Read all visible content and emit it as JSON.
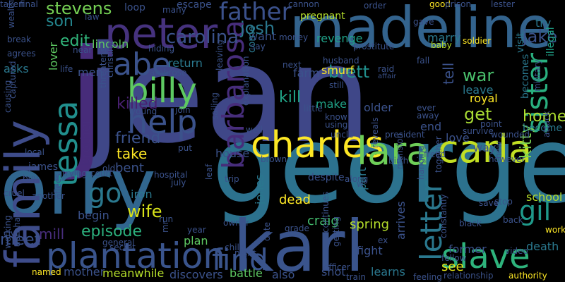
{
  "wordcloud": {
    "background": "#000000",
    "palette": [
      "#440154",
      "#482878",
      "#3e4a89",
      "#31688e",
      "#26828e",
      "#1f9e89",
      "#35b779",
      "#6ece58",
      "#b5de2b",
      "#fde725"
    ],
    "words": [
      {
        "text": "jean",
        "color": "#3f4788"
      },
      {
        "text": "j",
        "color": "#472c7a"
      },
      {
        "text": "george",
        "color": "#2c728e"
      },
      {
        "text": "orry",
        "color": "#31668e"
      },
      {
        "text": "karl",
        "color": "#3a548c"
      },
      {
        "text": "madeline",
        "color": "#33638d"
      },
      {
        "text": "family",
        "color": "#3e4c8a"
      },
      {
        "text": "peter",
        "color": "#46327e"
      },
      {
        "text": "charles",
        "color": "#fde725"
      },
      {
        "text": "lara",
        "color": "#6ece58"
      },
      {
        "text": "carla",
        "color": "#c2df23"
      },
      {
        "text": "plantation",
        "color": "#3a548c"
      },
      {
        "text": "slave",
        "color": "#2eb37c"
      },
      {
        "text": "billy",
        "color": "#5ec962"
      },
      {
        "text": "help",
        "color": "#3b528b"
      },
      {
        "text": "abe",
        "color": "#3b528b"
      },
      {
        "text": "tessa",
        "color": "#218f8d"
      },
      {
        "text": "barbarosa",
        "color": "#472d7b"
      },
      {
        "text": "find",
        "color": "#3a548c"
      },
      {
        "text": "letter",
        "color": "#2a788e"
      },
      {
        "text": "sister",
        "color": "#29af7f"
      },
      {
        "text": "father",
        "color": "#3b518b"
      },
      {
        "text": "go",
        "color": "#2a788e"
      },
      {
        "text": "gil",
        "color": "#1f998a"
      },
      {
        "text": "carolina",
        "color": "#3b528b"
      },
      {
        "text": "jake",
        "color": "#3b528b"
      },
      {
        "text": "kitty",
        "color": "#7ad151"
      },
      {
        "text": "josh",
        "color": "#2a788e"
      },
      {
        "text": "stevens",
        "color": "#75d054"
      },
      {
        "text": "brett",
        "color": "#21908d"
      },
      {
        "text": "son",
        "color": "#24868e"
      },
      {
        "text": "edit",
        "color": "#31b57b"
      },
      {
        "text": "lincoln",
        "color": "#5ec962"
      },
      {
        "text": "war",
        "color": "#4ac16d"
      },
      {
        "text": "kill",
        "color": "#20a386"
      },
      {
        "text": "episode",
        "color": "#2cb17e"
      },
      {
        "text": "wife",
        "color": "#d8e219"
      },
      {
        "text": "killed",
        "color": "#482071"
      },
      {
        "text": "friend",
        "color": "#3b528b"
      },
      {
        "text": "take",
        "color": "#fde725"
      },
      {
        "text": "bent",
        "color": "#3b528b"
      },
      {
        "text": "get",
        "color": "#a8db34"
      },
      {
        "text": "home",
        "color": "#addc30"
      },
      {
        "text": "tell",
        "color": "#3b528b"
      },
      {
        "text": "brother",
        "color": "#472d7b"
      },
      {
        "text": "meet",
        "color": "#3b528b"
      },
      {
        "text": "mill",
        "color": "#472d7b"
      },
      {
        "text": "iron",
        "color": "#2a788e"
      },
      {
        "text": "mother",
        "color": "#3b528b"
      },
      {
        "text": "meanwhile",
        "color": "#b5de2b"
      },
      {
        "text": "discovers",
        "color": "#3b528b"
      },
      {
        "text": "battle",
        "color": "#5ec962"
      },
      {
        "text": "also",
        "color": "#3b528b"
      },
      {
        "text": "shot",
        "color": "#3b528b"
      },
      {
        "text": "learns",
        "color": "#2a788e"
      },
      {
        "text": "see",
        "color": "#e5e419"
      },
      {
        "text": "former",
        "color": "#3b528b"
      },
      {
        "text": "death",
        "color": "#2a788e"
      },
      {
        "text": "school",
        "color": "#b5de2b"
      },
      {
        "text": "fight",
        "color": "#3b528b"
      },
      {
        "text": "spring",
        "color": "#b5de2b"
      },
      {
        "text": "craig",
        "color": "#44bf70"
      },
      {
        "text": "dead",
        "color": "#fde725"
      },
      {
        "text": "house",
        "color": "#3b528b"
      },
      {
        "text": "jones",
        "color": "#2a788e"
      },
      {
        "text": "part",
        "color": "#2a788e"
      },
      {
        "text": "plan",
        "color": "#5ec962"
      },
      {
        "text": "smurf",
        "color": "#fde725"
      },
      {
        "text": "farm",
        "color": "#3b528b"
      },
      {
        "text": "older",
        "color": "#3b528b"
      },
      {
        "text": "make",
        "color": "#1fa187"
      },
      {
        "text": "revenge",
        "color": "#1fa187"
      },
      {
        "text": "marry",
        "color": "#2a788e"
      },
      {
        "text": "visit",
        "color": "#2a788e"
      },
      {
        "text": "try",
        "color": "#2a788e"
      },
      {
        "text": "illegal",
        "color": "#1fa187"
      },
      {
        "text": "leave",
        "color": "#2a788e"
      },
      {
        "text": "royal",
        "color": "#fde725"
      },
      {
        "text": "end",
        "color": "#3b528b"
      },
      {
        "text": "love",
        "color": "#3b528b"
      },
      {
        "text": "way",
        "color": "#3b528b"
      },
      {
        "text": "becomes",
        "color": "#2a788e"
      },
      {
        "text": "become",
        "color": "#2a788e"
      },
      {
        "text": "want",
        "color": "#3b528b"
      },
      {
        "text": "come",
        "color": "#2a788e"
      },
      {
        "text": "return",
        "color": "#2a788e"
      },
      {
        "text": "men",
        "color": "#3b528b"
      },
      {
        "text": "lover",
        "color": "#5ec962"
      },
      {
        "text": "taken",
        "color": "#3b528b"
      },
      {
        "text": "asks",
        "color": "#2a788e"
      },
      {
        "text": "james",
        "color": "#3b528b"
      },
      {
        "text": "begin",
        "color": "#3b528b"
      },
      {
        "text": "run",
        "color": "#3b528b"
      },
      {
        "text": "loop",
        "color": "#3b528b"
      },
      {
        "text": "escape",
        "color": "#3b528b"
      },
      {
        "text": "final",
        "color": "#3b528b"
      },
      {
        "text": "law",
        "color": "#3b528b"
      },
      {
        "text": "many",
        "color": "#3b528b"
      },
      {
        "text": "cannon",
        "color": "#3b528b"
      },
      {
        "text": "pregnant",
        "color": "#b5de2b"
      },
      {
        "text": "order",
        "color": "#3b528b"
      },
      {
        "text": "good",
        "color": "#fde725"
      },
      {
        "text": "prison",
        "color": "#3b528b"
      },
      {
        "text": "lester",
        "color": "#3b528b"
      },
      {
        "text": "wealthy",
        "color": "#3b528b"
      },
      {
        "text": "break",
        "color": "#3b528b"
      },
      {
        "text": "agrees",
        "color": "#3b528b"
      },
      {
        "text": "near",
        "color": "#3b528b"
      },
      {
        "text": "hiding",
        "color": "#3b528b"
      },
      {
        "text": "money",
        "color": "#3b528b"
      },
      {
        "text": "say",
        "color": "#3b528b"
      },
      {
        "text": "prostitute",
        "color": "#3b528b"
      },
      {
        "text": "soldier",
        "color": "#fde725"
      },
      {
        "text": "baby",
        "color": "#b5de2b"
      },
      {
        "text": "gave",
        "color": "#3b528b"
      },
      {
        "text": "life",
        "color": "#3b528b"
      },
      {
        "text": "ambrose",
        "color": "#3b528b"
      },
      {
        "text": "leaving",
        "color": "#3b528b"
      },
      {
        "text": "next",
        "color": "#3b528b"
      },
      {
        "text": "husband",
        "color": "#3b528b"
      },
      {
        "text": "raid",
        "color": "#3b528b"
      },
      {
        "text": "affair",
        "color": "#3b528b"
      },
      {
        "text": "still",
        "color": "#3b528b"
      },
      {
        "text": "fall",
        "color": "#3b528b"
      },
      {
        "text": "ever",
        "color": "#3b528b"
      },
      {
        "text": "away",
        "color": "#3b528b"
      },
      {
        "text": "military",
        "color": "#3b528b"
      },
      {
        "text": "christina",
        "color": "#3b528b"
      },
      {
        "text": "threatens",
        "color": "#3b528b"
      },
      {
        "text": "young",
        "color": "#3b528b"
      },
      {
        "text": "join",
        "color": "#3b528b"
      },
      {
        "text": "explanation",
        "color": "#3b528b"
      },
      {
        "text": "little",
        "color": "#3b528b"
      },
      {
        "text": "know",
        "color": "#3b528b"
      },
      {
        "text": "using",
        "color": "#3b528b"
      },
      {
        "text": "uncle",
        "color": "#3b528b"
      },
      {
        "text": "president",
        "color": "#3b528b"
      },
      {
        "text": "point",
        "color": "#3b528b"
      },
      {
        "text": "survive",
        "color": "#3b528b"
      },
      {
        "text": "wounded",
        "color": "#3b528b"
      },
      {
        "text": "attack",
        "color": "#3b528b"
      },
      {
        "text": "captured",
        "color": "#3b528b"
      },
      {
        "text": "causing",
        "color": "#3b528b"
      },
      {
        "text": "local",
        "color": "#3b528b"
      },
      {
        "text": "well",
        "color": "#3b528b"
      },
      {
        "text": "put",
        "color": "#3b528b"
      },
      {
        "text": "sailing",
        "color": "#3b528b"
      },
      {
        "text": "brown",
        "color": "#3b528b"
      },
      {
        "text": "despite",
        "color": "#3b528b"
      },
      {
        "text": "reveals",
        "color": "#3b528b"
      },
      {
        "text": "birth",
        "color": "#3b528b"
      },
      {
        "text": "freed",
        "color": "#3b528b"
      },
      {
        "text": "however",
        "color": "#3b528b"
      },
      {
        "text": "together",
        "color": "#3b528b"
      },
      {
        "text": "cruel",
        "color": "#3b528b"
      },
      {
        "text": "another",
        "color": "#3b528b"
      },
      {
        "text": "trying",
        "color": "#3b528b"
      },
      {
        "text": "court",
        "color": "#3b528b"
      },
      {
        "text": "hospital",
        "color": "#3b528b"
      },
      {
        "text": "old",
        "color": "#3b528b"
      },
      {
        "text": "july",
        "color": "#3b528b"
      },
      {
        "text": "leaf",
        "color": "#3b528b"
      },
      {
        "text": "trip",
        "color": "#3b528b"
      },
      {
        "text": "along",
        "color": "#3b528b"
      },
      {
        "text": "mansion",
        "color": "#3b528b"
      },
      {
        "text": "hanging",
        "color": "#3b528b"
      },
      {
        "text": "new",
        "color": "#3b528b"
      },
      {
        "text": "stop",
        "color": "#3b528b"
      },
      {
        "text": "save",
        "color": "#3b528b"
      },
      {
        "text": "buy",
        "color": "#3b528b"
      },
      {
        "text": "flees",
        "color": "#3b528b"
      },
      {
        "text": "general",
        "color": "#3b528b"
      },
      {
        "text": "owner",
        "color": "#3b528b"
      },
      {
        "text": "grade",
        "color": "#3b528b"
      },
      {
        "text": "continues",
        "color": "#3b528b"
      },
      {
        "text": "back",
        "color": "#3b528b"
      },
      {
        "text": "black",
        "color": "#3b528b"
      },
      {
        "text": "work",
        "color": "#fde725"
      },
      {
        "text": "civil",
        "color": "#3b528b"
      },
      {
        "text": "abraham",
        "color": "#3b528b"
      },
      {
        "text": "working",
        "color": "#3b528b"
      },
      {
        "text": "named",
        "color": "#fde725"
      },
      {
        "text": "secret",
        "color": "#3b528b"
      },
      {
        "text": "year",
        "color": "#3b528b"
      },
      {
        "text": "child",
        "color": "#3b528b"
      },
      {
        "text": "night",
        "color": "#3b528b"
      },
      {
        "text": "date",
        "color": "#3b528b"
      },
      {
        "text": "getting",
        "color": "#3b528b"
      },
      {
        "text": "officer",
        "color": "#3b528b"
      },
      {
        "text": "ex",
        "color": "#3b528b"
      },
      {
        "text": "train",
        "color": "#3b528b"
      },
      {
        "text": "arrives",
        "color": "#3b528b"
      },
      {
        "text": "constantly",
        "color": "#3b528b"
      },
      {
        "text": "fellow",
        "color": "#3b528b"
      },
      {
        "text": "video",
        "color": "#3b528b"
      },
      {
        "text": "feeling",
        "color": "#3b528b"
      },
      {
        "text": "relationship",
        "color": "#3b528b"
      },
      {
        "text": "authority",
        "color": "#fde725"
      },
      {
        "text": "w",
        "color": "#3b528b"
      },
      {
        "text": "mr",
        "color": "#3b528b"
      }
    ]
  }
}
